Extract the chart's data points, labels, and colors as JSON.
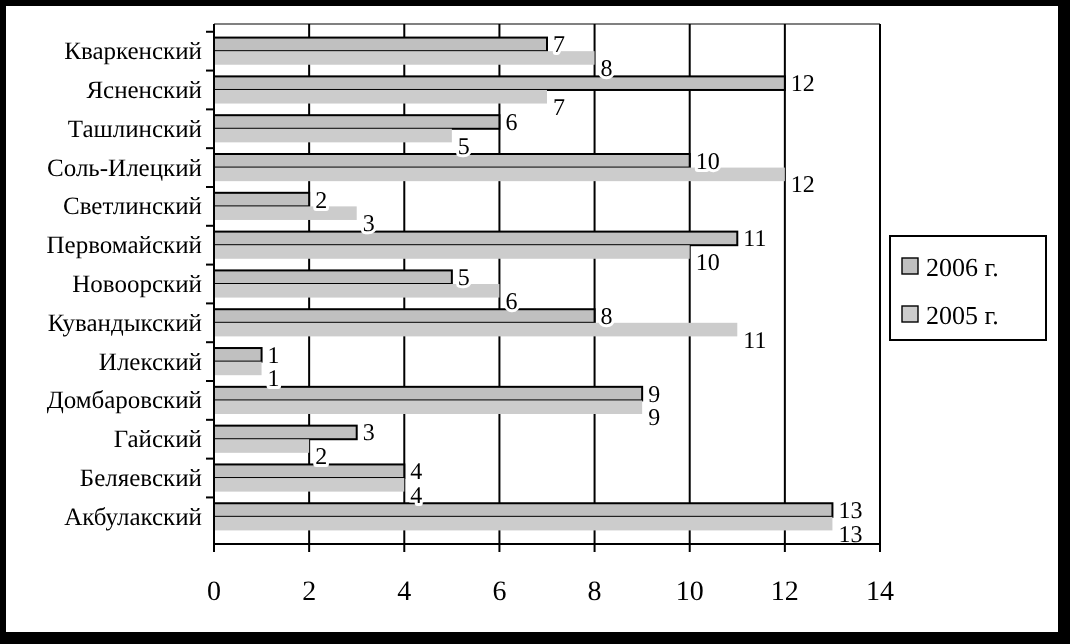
{
  "chart_data": {
    "type": "bar",
    "orientation": "horizontal",
    "categories": [
      "Кваркенский",
      "Ясненский",
      "Ташлинский",
      "Соль-Илецкий",
      "Светлинский",
      "Первомайский",
      "Новоорский",
      "Кувандыкский",
      "Илекский",
      "Домбаровский",
      "Гайский",
      "Беляевский",
      "Акбулакский"
    ],
    "series": [
      {
        "name": "2006 г.",
        "color": "#c0c0c0",
        "values": [
          7,
          12,
          6,
          10,
          2,
          11,
          5,
          8,
          1,
          9,
          3,
          4,
          13
        ]
      },
      {
        "name": "2005 г.",
        "color": "#cccccc",
        "values": [
          8,
          7,
          5,
          12,
          3,
          10,
          6,
          11,
          1,
          9,
          2,
          4,
          13
        ]
      }
    ],
    "xlim": [
      0,
      14
    ],
    "xticks": [
      0,
      2,
      4,
      6,
      8,
      10,
      12,
      14
    ],
    "grid": "x",
    "legend": "right",
    "data_labels": true
  }
}
